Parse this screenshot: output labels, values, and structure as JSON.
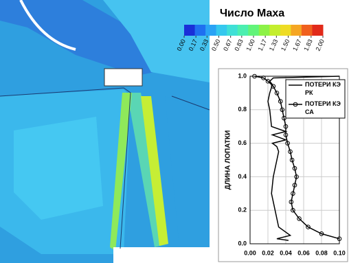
{
  "chart_data": [
    {
      "type": "colorbar",
      "title": "Число Маха",
      "lim": [
        0,
        2
      ],
      "colors": [
        "#1a2fd8",
        "#1f6ff0",
        "#2aa3f5",
        "#35c8ee",
        "#3fe0d6",
        "#4cefb0",
        "#62f47a",
        "#8cf247",
        "#c4ee2e",
        "#eedc25",
        "#f5a623",
        "#f0601e",
        "#e12a1a"
      ],
      "ticks": [
        {
          "value": 0,
          "label": "0.00"
        },
        {
          "value": 0.17,
          "label": "0.17"
        },
        {
          "value": 0.33,
          "label": "0.33"
        },
        {
          "value": 0.5,
          "label": "0.50"
        },
        {
          "value": 0.67,
          "label": "0.67"
        },
        {
          "value": 0.83,
          "label": "0.83"
        },
        {
          "value": 1,
          "label": "1.00"
        },
        {
          "value": 1.17,
          "label": "1.17"
        },
        {
          "value": 1.33,
          "label": "1.33"
        },
        {
          "value": 1.5,
          "label": "1.50"
        },
        {
          "value": 1.67,
          "label": "1.67"
        },
        {
          "value": 1.83,
          "label": "1.83"
        },
        {
          "value": 2,
          "label": "2.00"
        }
      ]
    },
    {
      "type": "line",
      "y_label": "ДЛИНА ЛОПАТКИ",
      "xlim": [
        0,
        0.1
      ],
      "ylim": [
        0,
        1
      ],
      "xticks": [
        {
          "value": 0,
          "label": "0.00"
        },
        {
          "value": 0.02,
          "label": "0.02"
        },
        {
          "value": 0.04,
          "label": "0.04"
        },
        {
          "value": 0.06,
          "label": "0.06"
        },
        {
          "value": 0.08,
          "label": "0.08"
        },
        {
          "value": 0.1,
          "label": "0.10"
        }
      ],
      "yticks": [
        {
          "value": 0,
          "label": "0.0"
        },
        {
          "value": 0.2,
          "label": "0.2"
        },
        {
          "value": 0.4,
          "label": "0.4"
        },
        {
          "value": 0.6,
          "label": "0.6"
        },
        {
          "value": 0.8,
          "label": "0.8"
        },
        {
          "value": 1,
          "label": "1.0"
        }
      ],
      "grid": true,
      "series": [
        {
          "name": "ПОТЕРИ КЭ РК",
          "color": "#000000",
          "marker": "none",
          "x": [
            0.043,
            0.03,
            0.045,
            0.032,
            0.028,
            0.024,
            0.026,
            0.03,
            0.032,
            0.03,
            0.025,
            0.04,
            0.025,
            0.04,
            0.024,
            0.022,
            0.02,
            0.022,
            0.025,
            0.022,
            0.026,
            0.1
          ],
          "y": [
            0.02,
            0.03,
            0.05,
            0.1,
            0.2,
            0.3,
            0.4,
            0.5,
            0.55,
            0.58,
            0.6,
            0.62,
            0.65,
            0.67,
            0.7,
            0.8,
            0.85,
            0.9,
            0.95,
            0.97,
            0.99,
            1.0
          ]
        },
        {
          "name": "ПОТЕРИ КЭ СА",
          "color": "#000000",
          "marker": "circle",
          "x": [
            0.1,
            0.08,
            0.065,
            0.055,
            0.048,
            0.046,
            0.048,
            0.05,
            0.052,
            0.05,
            0.047,
            0.045,
            0.042,
            0.04,
            0.04,
            0.038,
            0.036,
            0.034,
            0.03,
            0.026,
            0.02,
            0.015,
            0.005
          ],
          "y": [
            0.03,
            0.06,
            0.1,
            0.15,
            0.2,
            0.25,
            0.3,
            0.35,
            0.4,
            0.45,
            0.5,
            0.55,
            0.6,
            0.65,
            0.7,
            0.75,
            0.8,
            0.85,
            0.9,
            0.94,
            0.97,
            0.99,
            1.0
          ]
        }
      ]
    }
  ]
}
